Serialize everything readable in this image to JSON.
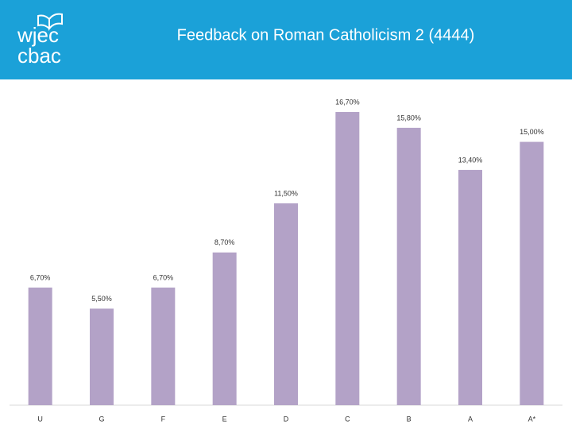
{
  "logo": {
    "line1": "wjec",
    "line2": "cbac"
  },
  "chart_data": {
    "type": "bar",
    "title": "Feedback on Roman Catholicism 2 (4444)",
    "categories": [
      "U",
      "G",
      "F",
      "E",
      "D",
      "C",
      "B",
      "A",
      "A*"
    ],
    "values": [
      6.7,
      5.5,
      6.7,
      8.7,
      11.5,
      16.7,
      15.8,
      13.4,
      15.0
    ],
    "value_labels": [
      "6,70%",
      "5,50%",
      "6,70%",
      "8,70%",
      "11,50%",
      "16,70%",
      "15,80%",
      "13,40%",
      "15,00%"
    ],
    "color": "#b3a2c7"
  }
}
